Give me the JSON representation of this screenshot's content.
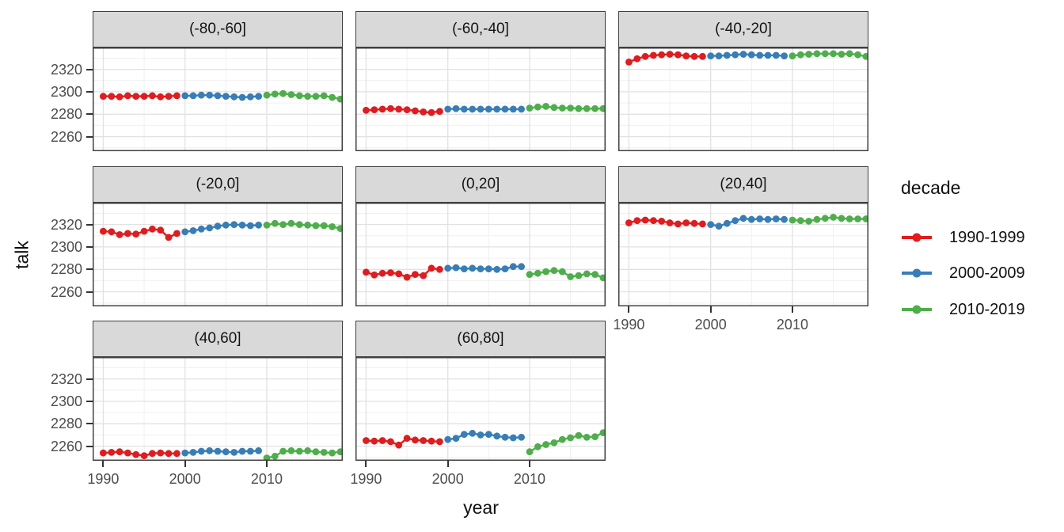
{
  "figure": {
    "y_axis_title": "talk",
    "x_axis_title": "year"
  },
  "legend": {
    "title": "decade",
    "entries": [
      {
        "label": "1990-1999",
        "color": "#e41a1c"
      },
      {
        "label": "2000-2009",
        "color": "#377eb8"
      },
      {
        "label": "2010-2019",
        "color": "#4daf4a"
      }
    ]
  },
  "axes": {
    "y_tick_labels": [
      "2320",
      "2300",
      "2280",
      "2260"
    ],
    "x_tick_labels": [
      "1990",
      "2000",
      "2010"
    ],
    "y_minor": [
      2330,
      2310,
      2290,
      2270,
      2250
    ],
    "x_minor": [
      1995,
      2005,
      2015
    ]
  },
  "style": {
    "strip_fill": "#d9d9d9",
    "panel_border": "#404040",
    "grid_major": "#e2e2e2",
    "grid_minor": "#f0f0f0",
    "tick_color": "#333333",
    "axis_text_color": "#4d4d4d"
  },
  "chart_data": {
    "type": "line",
    "title": "",
    "xlabel": "year",
    "ylabel": "talk",
    "legend_title": "decade",
    "legend_position": "right",
    "grid": true,
    "x": [
      1990,
      1991,
      1992,
      1993,
      1994,
      1995,
      1996,
      1997,
      1998,
      1999,
      2000,
      2001,
      2002,
      2003,
      2004,
      2005,
      2006,
      2007,
      2008,
      2009,
      2010,
      2011,
      2012,
      2013,
      2014,
      2015,
      2016,
      2017,
      2018,
      2019
    ],
    "x_ticks": [
      1990,
      2000,
      2010
    ],
    "y_ticks": [
      2320,
      2300,
      2280,
      2260
    ],
    "xlim": [
      1988.7,
      2019.3
    ],
    "ylim": [
      2247,
      2339.5
    ],
    "series_names": [
      "1990-1999",
      "2000-2009",
      "2010-2019"
    ],
    "facets": [
      {
        "label": "(-80,-60]",
        "series": [
          {
            "name": "1990-1999",
            "values": [
              2296,
              2296,
              2295.5,
              2296.5,
              2296,
              2296,
              2296.5,
              2295.5,
              2296,
              2296.5
            ]
          },
          {
            "name": "2000-2009",
            "values": [
              2296.5,
              2296.5,
              2297,
              2297,
              2296.5,
              2296,
              2295.5,
              2295,
              2295.5,
              2296
            ]
          },
          {
            "name": "2010-2019",
            "values": [
              2297,
              2298,
              2298.5,
              2297.5,
              2296.5,
              2296,
              2296,
              2296.5,
              2295,
              2293.5
            ]
          }
        ]
      },
      {
        "label": "(-60,-40]",
        "series": [
          {
            "name": "1990-1999",
            "values": [
              2283.5,
              2284,
              2284.5,
              2285,
              2284.5,
              2284,
              2283,
              2282,
              2281.5,
              2282.5
            ]
          },
          {
            "name": "2000-2009",
            "values": [
              2284.5,
              2285,
              2284.5,
              2284.5,
              2284.5,
              2284.5,
              2284.5,
              2284.5,
              2284.5,
              2284.5
            ]
          },
          {
            "name": "2010-2019",
            "values": [
              2285.5,
              2286.5,
              2287,
              2286,
              2285.5,
              2285.5,
              2285,
              2285,
              2285,
              2285
            ]
          }
        ]
      },
      {
        "label": "(-40,-20]",
        "series": [
          {
            "name": "1990-1999",
            "values": [
              2326.5,
              2329.5,
              2331.5,
              2332.5,
              2333,
              2333.5,
              2333,
              2332,
              2331.5,
              2331.5
            ]
          },
          {
            "name": "2000-2009",
            "values": [
              2332,
              2332,
              2332.5,
              2333,
              2333.5,
              2333,
              2332.5,
              2332.5,
              2332.5,
              2332
            ]
          },
          {
            "name": "2010-2019",
            "values": [
              2332,
              2333,
              2333.5,
              2334,
              2334,
              2334,
              2333.5,
              2334,
              2333,
              2331.5
            ]
          }
        ]
      },
      {
        "label": "(-20,0]",
        "series": [
          {
            "name": "1990-1999",
            "values": [
              2314,
              2313.5,
              2311,
              2312,
              2311.5,
              2314,
              2316,
              2315,
              2308.5,
              2312
            ]
          },
          {
            "name": "2000-2009",
            "values": [
              2313.5,
              2314.5,
              2316,
              2317,
              2318.5,
              2319.5,
              2320,
              2319.5,
              2319,
              2319.5
            ]
          },
          {
            "name": "2010-2019",
            "values": [
              2319.5,
              2321,
              2320,
              2321,
              2320,
              2319.5,
              2319,
              2319,
              2318,
              2316.5
            ]
          }
        ]
      },
      {
        "label": "(0,20]",
        "series": [
          {
            "name": "1990-1999",
            "values": [
              2277.5,
              2275,
              2276.5,
              2277,
              2276,
              2273,
              2275.5,
              2274.5,
              2281,
              2280
            ]
          },
          {
            "name": "2000-2009",
            "values": [
              2281,
              2281.5,
              2280.5,
              2281,
              2280.5,
              2280.5,
              2280,
              2280.5,
              2282.5,
              2282.5
            ]
          },
          {
            "name": "2010-2019",
            "values": [
              2275.5,
              2276.5,
              2278,
              2279,
              2278,
              2273.5,
              2274.5,
              2276,
              2275.5,
              2272.5
            ]
          }
        ]
      },
      {
        "label": "(20,40]",
        "series": [
          {
            "name": "1990-1999",
            "values": [
              2321.5,
              2323.5,
              2324,
              2323.5,
              2323,
              2321.5,
              2320.5,
              2321.5,
              2321,
              2320.5
            ]
          },
          {
            "name": "2000-2009",
            "values": [
              2320,
              2318.5,
              2321,
              2323.5,
              2325.5,
              2324.5,
              2325,
              2324.5,
              2325,
              2324.5
            ]
          },
          {
            "name": "2010-2019",
            "values": [
              2324,
              2323.5,
              2323,
              2324.5,
              2325.5,
              2326.5,
              2325.5,
              2325,
              2325,
              2325
            ]
          }
        ]
      },
      {
        "label": "(40,60]",
        "series": [
          {
            "name": "1990-1999",
            "values": [
              2254,
              2254.5,
              2255,
              2254,
              2252.5,
              2251.5,
              2253.5,
              2254,
              2253.5,
              2253.5
            ]
          },
          {
            "name": "2000-2009",
            "values": [
              2254,
              2254.5,
              2255.5,
              2256,
              2255.5,
              2255,
              2254.5,
              2255.5,
              2255.5,
              2256
            ]
          },
          {
            "name": "2010-2019",
            "values": [
              2249.5,
              2251,
              2255.5,
              2256,
              2255.5,
              2256,
              2255,
              2254.5,
              2254,
              2255
            ]
          }
        ]
      },
      {
        "label": "(60,80]",
        "series": [
          {
            "name": "1990-1999",
            "values": [
              2265,
              2264.5,
              2265,
              2264,
              2261,
              2267,
              2265.5,
              2265,
              2264.5,
              2264
            ]
          },
          {
            "name": "2000-2009",
            "values": [
              2266,
              2267,
              2270.5,
              2271.5,
              2270,
              2270.5,
              2269,
              2268,
              2267.5,
              2268
            ]
          },
          {
            "name": "2010-2019",
            "values": [
              2255,
              2259.5,
              2261.5,
              2263,
              2266,
              2267.5,
              2269.5,
              2268,
              2268.5,
              2272
            ]
          }
        ]
      }
    ]
  }
}
